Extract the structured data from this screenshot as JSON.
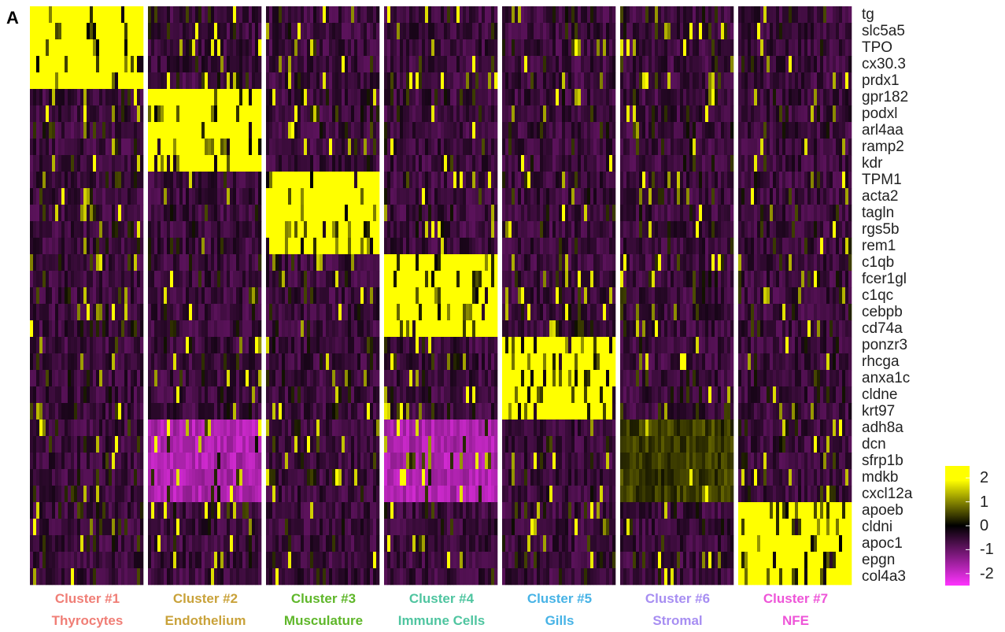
{
  "panel_label": "A",
  "chart_data": {
    "type": "heatmap",
    "genes": [
      "tg",
      "slc5a5",
      "TPO",
      "cx30.3",
      "prdx1",
      "gpr182",
      "podxl",
      "arl4aa",
      "ramp2",
      "kdr",
      "TPM1",
      "acta2",
      "tagln",
      "rgs5b",
      "rem1",
      "c1qb",
      "fcer1gl",
      "c1qc",
      "cebpb",
      "cd74a",
      "ponzr3",
      "rhcga",
      "anxa1c",
      "cldne",
      "krt97",
      "adh8a",
      "dcn",
      "sfrp1b",
      "mdkb",
      "cxcl12a",
      "apoeb",
      "cldni",
      "apoc1",
      "epgn",
      "col4a3"
    ],
    "clusters": [
      {
        "number": "Cluster #1",
        "name": "Thyrocytes",
        "color": "#f07e76"
      },
      {
        "number": "Cluster #2",
        "name": "Endothelium",
        "color": "#c9a23a"
      },
      {
        "number": "Cluster #3",
        "name": "Musculature",
        "color": "#5fb72a"
      },
      {
        "number": "Cluster #4",
        "name": "Immune Cells",
        "color": "#4fc5a0"
      },
      {
        "number": "Cluster #5",
        "name": "Gills",
        "color": "#47b3e6"
      },
      {
        "number": "Cluster #6",
        "name": "Stromal",
        "color": "#a78ef2"
      },
      {
        "number": "Cluster #7",
        "name": "NFE",
        "color": "#ee55d8"
      }
    ],
    "mean_expression": [
      [
        2,
        -0.5,
        -0.5,
        -0.5,
        -0.5,
        -0.5,
        -0.5
      ],
      [
        2,
        -0.5,
        -0.5,
        -0.5,
        -0.5,
        -0.5,
        -0.5
      ],
      [
        2,
        -0.5,
        -0.5,
        -0.5,
        -0.5,
        -0.5,
        -0.5
      ],
      [
        2,
        -0.5,
        -0.5,
        -0.5,
        -0.5,
        -0.5,
        -0.5
      ],
      [
        2,
        -0.5,
        -0.5,
        -0.5,
        -0.5,
        -0.5,
        -0.5
      ],
      [
        -0.5,
        2,
        -0.5,
        -0.5,
        -0.5,
        -0.5,
        -0.5
      ],
      [
        -0.5,
        2,
        -0.5,
        -0.5,
        -0.5,
        -0.5,
        -0.5
      ],
      [
        -0.5,
        2,
        -0.5,
        -0.5,
        -0.5,
        -0.5,
        -0.5
      ],
      [
        -0.5,
        2,
        -0.5,
        -0.5,
        -0.5,
        -0.5,
        -0.5
      ],
      [
        -0.5,
        2,
        -0.5,
        -0.5,
        -0.5,
        -0.5,
        -0.5
      ],
      [
        -0.5,
        -0.5,
        2,
        -0.5,
        -0.5,
        -0.5,
        -0.5
      ],
      [
        -0.5,
        -0.5,
        2,
        -0.5,
        -0.5,
        -0.5,
        -0.5
      ],
      [
        -0.5,
        -0.5,
        2,
        -0.5,
        -0.5,
        -0.5,
        -0.5
      ],
      [
        -0.5,
        -0.5,
        2,
        -0.5,
        -0.5,
        -0.5,
        -0.5
      ],
      [
        -0.5,
        -0.5,
        2,
        -0.5,
        -0.5,
        -0.5,
        -0.5
      ],
      [
        -0.5,
        -0.5,
        -0.5,
        2,
        -0.5,
        -0.5,
        -0.5
      ],
      [
        -0.5,
        -0.5,
        -0.5,
        2,
        -0.5,
        -0.5,
        -0.5
      ],
      [
        -0.5,
        -0.5,
        -0.5,
        2,
        -0.5,
        -0.5,
        -0.5
      ],
      [
        -0.5,
        -0.5,
        -0.5,
        2,
        -0.5,
        -0.5,
        -0.5
      ],
      [
        -0.5,
        -0.5,
        -0.5,
        2,
        -0.5,
        -0.5,
        -0.5
      ],
      [
        -0.5,
        -0.5,
        -0.5,
        -0.5,
        2,
        -0.5,
        -0.5
      ],
      [
        -0.5,
        -0.5,
        -0.5,
        -0.5,
        2,
        -0.5,
        -0.5
      ],
      [
        -0.5,
        -0.5,
        -0.5,
        -0.5,
        2,
        -0.5,
        -0.5
      ],
      [
        -0.5,
        -0.5,
        -0.5,
        -0.5,
        2,
        -0.5,
        -0.5
      ],
      [
        -0.5,
        -0.5,
        -0.5,
        -0.5,
        2,
        -0.5,
        -0.5
      ],
      [
        -0.5,
        -1.5,
        -0.5,
        -1.5,
        -0.5,
        0.5,
        -0.5
      ],
      [
        -0.5,
        -1.5,
        -0.5,
        -1.5,
        -0.5,
        0.5,
        -0.5
      ],
      [
        -0.5,
        -1.5,
        -0.5,
        -1.5,
        -0.5,
        0.5,
        -0.5
      ],
      [
        -0.5,
        -1.5,
        -0.5,
        -1.5,
        -0.5,
        0.5,
        -0.5
      ],
      [
        -0.5,
        -1.5,
        -0.5,
        -1.5,
        -0.5,
        0.5,
        -0.5
      ],
      [
        -0.5,
        -0.5,
        -0.5,
        -0.5,
        -0.5,
        -0.5,
        2
      ],
      [
        -0.5,
        -0.5,
        -0.5,
        -0.5,
        -0.5,
        -0.5,
        2
      ],
      [
        -0.5,
        -0.5,
        -0.5,
        -0.5,
        -0.5,
        -0.5,
        2
      ],
      [
        -0.5,
        -0.5,
        -0.5,
        -0.5,
        -0.5,
        -0.5,
        2
      ],
      [
        -0.5,
        -0.5,
        -0.5,
        -0.5,
        -0.5,
        -0.5,
        2
      ]
    ],
    "legend": {
      "ticks": [
        "2",
        "1",
        "0",
        "-1",
        "-2"
      ],
      "range": [
        -2.5,
        2.5
      ],
      "colors": {
        "low": "#ff33ff",
        "mid": "#000000",
        "high": "#ffff00"
      }
    }
  }
}
